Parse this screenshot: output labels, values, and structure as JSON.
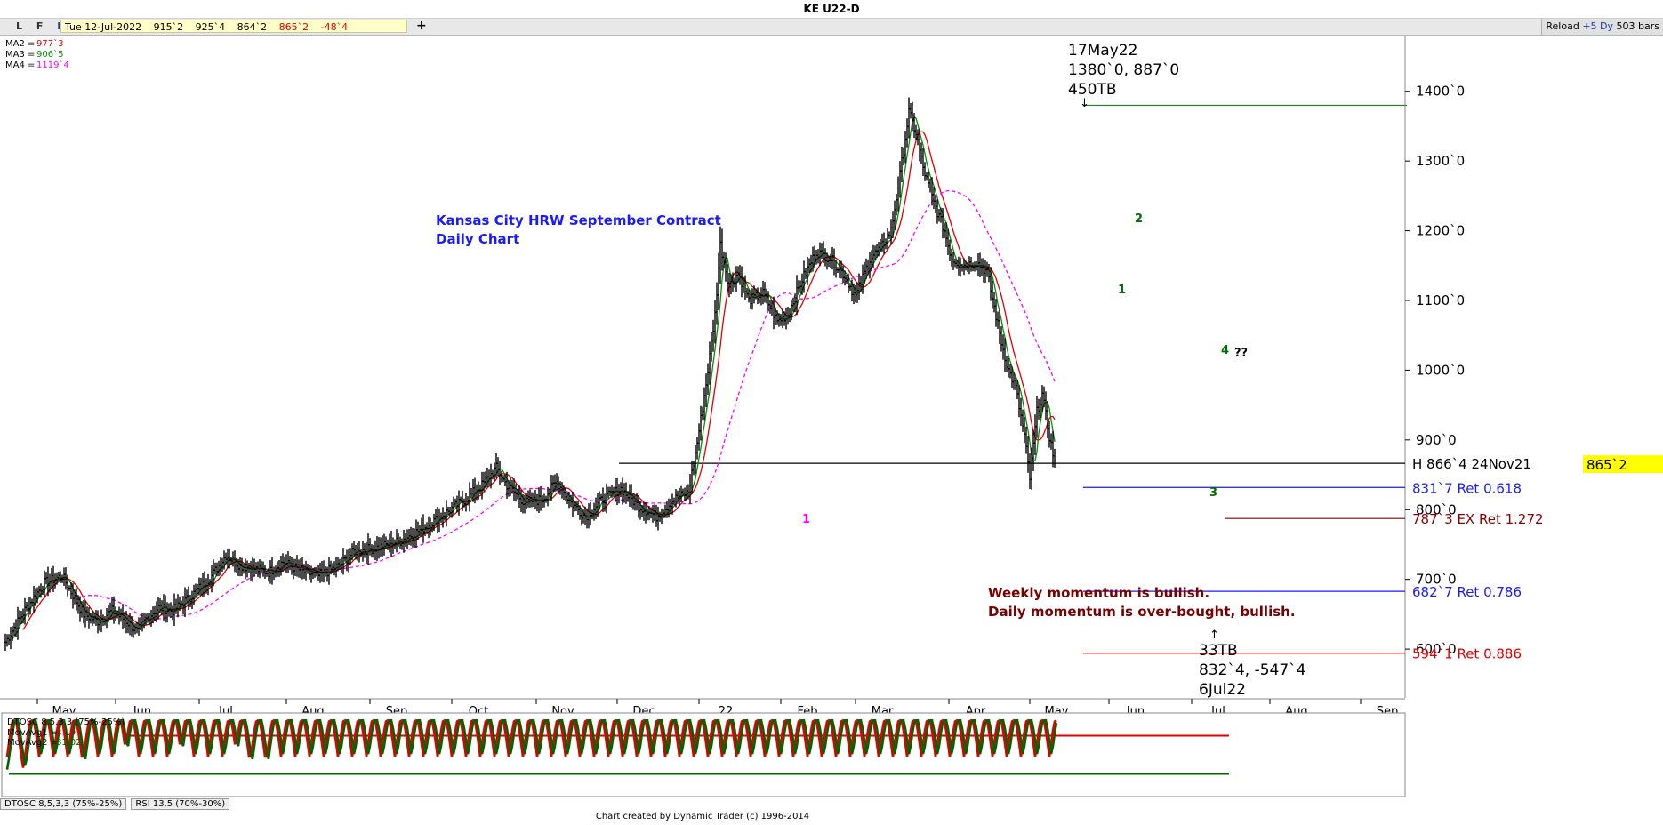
{
  "window": {
    "title": "KE U22-D",
    "lfr": [
      "L",
      "F",
      "R"
    ],
    "ohlc": {
      "date": "Tue 12-Jul-2022",
      "open": "915`2",
      "high": "925`4",
      "low": "864`2",
      "close": "865`2",
      "change": "-48`4"
    },
    "toolbar_right": {
      "reload": "Reload",
      "days": "+5 Dy",
      "bars": "503 bars"
    },
    "add_symbol": "+"
  },
  "legend": [
    {
      "label": "MA2 =",
      "value": "977`3",
      "color": "#e00000"
    },
    {
      "label": "MA3 =",
      "value": "906`5",
      "color": "#009000"
    },
    {
      "label": "MA4 =",
      "value": "1119`4",
      "color": "#ff00ff"
    }
  ],
  "chart_data": [
    {
      "type": "bar",
      "subtype": "ohlc",
      "title": "Kansas City HRW September Contract",
      "subtitle": "Daily Chart",
      "x_ticks": [
        "May",
        "Jun",
        "Jul",
        "Aug",
        "Sep",
        "Oct",
        "Nov",
        "Dec",
        "22",
        "Feb",
        "Mar",
        "Apr",
        "May",
        "Jun",
        "Jul",
        "Aug",
        "Sep"
      ],
      "y_ticks": [
        "600`0",
        "700`0",
        "800`0",
        "900`0",
        "1000`0",
        "1100`0",
        "1200`0",
        "1300`0",
        "1400`0"
      ],
      "y_tick_values": [
        600,
        700,
        800,
        900,
        1000,
        1100,
        1200,
        1300,
        1400
      ],
      "ylim": [
        530,
        1480
      ],
      "current_price": "865`2",
      "price_anchors": [
        [
          0,
          610
        ],
        [
          12,
          660
        ],
        [
          22,
          695
        ],
        [
          32,
          705
        ],
        [
          44,
          650
        ],
        [
          52,
          640
        ],
        [
          60,
          655
        ],
        [
          68,
          640
        ],
        [
          74,
          625
        ],
        [
          80,
          645
        ],
        [
          86,
          660
        ],
        [
          94,
          655
        ],
        [
          104,
          675
        ],
        [
          116,
          705
        ],
        [
          124,
          735
        ],
        [
          132,
          720
        ],
        [
          148,
          710
        ],
        [
          156,
          725
        ],
        [
          168,
          710
        ],
        [
          176,
          705
        ],
        [
          188,
          720
        ],
        [
          196,
          740
        ],
        [
          208,
          745
        ],
        [
          222,
          755
        ],
        [
          236,
          775
        ],
        [
          256,
          810
        ],
        [
          268,
          835
        ],
        [
          276,
          860
        ],
        [
          282,
          835
        ],
        [
          292,
          810
        ],
        [
          302,
          815
        ],
        [
          310,
          840
        ],
        [
          318,
          810
        ],
        [
          326,
          790
        ],
        [
          336,
          815
        ],
        [
          346,
          830
        ],
        [
          356,
          805
        ],
        [
          366,
          790
        ],
        [
          376,
          815
        ],
        [
          384,
          825
        ],
        [
          388,
          880
        ],
        [
          394,
          980
        ],
        [
          399,
          1080
        ],
        [
          402,
          1180
        ],
        [
          407,
          1120
        ],
        [
          412,
          1140
        ],
        [
          418,
          1100
        ],
        [
          426,
          1110
        ],
        [
          434,
          1070
        ],
        [
          440,
          1080
        ],
        [
          448,
          1130
        ],
        [
          456,
          1170
        ],
        [
          464,
          1160
        ],
        [
          472,
          1135
        ],
        [
          478,
          1105
        ],
        [
          486,
          1160
        ],
        [
          492,
          1175
        ],
        [
          498,
          1200
        ],
        [
          503,
          1280
        ],
        [
          508,
          1370
        ],
        [
          512,
          1340
        ],
        [
          516,
          1290
        ],
        [
          522,
          1240
        ],
        [
          528,
          1200
        ],
        [
          532,
          1160
        ],
        [
          538,
          1150
        ],
        [
          546,
          1155
        ],
        [
          552,
          1140
        ],
        [
          556,
          1090
        ],
        [
          560,
          1040
        ],
        [
          564,
          1000
        ],
        [
          568,
          975
        ],
        [
          573,
          905
        ],
        [
          576,
          845
        ],
        [
          580,
          940
        ],
        [
          583,
          965
        ],
        [
          587,
          905
        ],
        [
          590,
          868
        ]
      ],
      "moving_averages": [
        {
          "name": "MA2",
          "color": "#e00000",
          "lag": 7
        },
        {
          "name": "MA3",
          "color": "#009000",
          "lag": 3
        },
        {
          "name": "MA4",
          "color": "#ff00ff",
          "lag": 26
        }
      ],
      "annotations": [
        {
          "id": "high-label",
          "lines": [
            "17May22",
            "1380`0, 887`0",
            "450TB"
          ],
          "color": "#000000"
        },
        {
          "id": "low-label",
          "lines": [
            "33TB",
            "832`4, -547`4",
            "6Jul22"
          ],
          "color": "#000000"
        },
        {
          "id": "momentum-note",
          "lines": [
            "Weekly momentum is bullish.",
            "Daily momentum is over-bought, bullish."
          ],
          "color": "#7a0000"
        },
        {
          "id": "wave-1",
          "text": "1",
          "color": "#007000"
        },
        {
          "id": "wave-2",
          "text": "2",
          "color": "#007000"
        },
        {
          "id": "wave-3",
          "text": "3",
          "color": "#007000"
        },
        {
          "id": "wave-4",
          "text": "4",
          "color": "#007000"
        },
        {
          "id": "wave-question",
          "text": "??",
          "color": "#000000"
        },
        {
          "id": "feb-marker",
          "text": "1",
          "color": "#ff00ff"
        }
      ],
      "levels": [
        {
          "price": 1380,
          "label": "",
          "color": "#1a8a1a"
        },
        {
          "price": 866.5,
          "label": "H 866`4 24Nov21",
          "color": "#000000"
        },
        {
          "price": 831.875,
          "label": "831`7 Ret 0.618",
          "color": "#1a1aff"
        },
        {
          "price": 787.375,
          "label": "787`3 EX Ret 1.272",
          "color": "#8b0000"
        },
        {
          "price": 682.875,
          "label": "682`7 Ret 0.786",
          "color": "#1a1aff"
        },
        {
          "price": 594.125,
          "label": "594`1 Ret 0.886",
          "color": "#e00000"
        }
      ]
    },
    {
      "type": "line",
      "title": "DTOSC 8,5,3,3 (75%-25%)",
      "ylim": [
        0,
        100
      ],
      "bands": [
        75,
        25
      ],
      "series": [
        {
          "name": "MovAvg1",
          "value_label": "81.97",
          "color": "#e00000"
        },
        {
          "name": "MovAvg2",
          "value_label": "81.02",
          "color": "#006400"
        }
      ],
      "peaks": [
        4,
        14,
        22,
        30,
        38,
        47,
        55,
        63,
        70,
        78,
        86,
        94,
        101,
        109,
        117,
        125,
        132,
        141,
        150,
        158,
        166,
        174,
        182,
        190,
        198,
        206,
        214,
        222,
        230,
        238,
        246,
        254,
        262,
        270,
        278,
        286,
        294,
        302,
        310,
        318,
        326,
        334,
        342,
        350,
        358,
        366,
        374,
        382,
        390,
        398,
        406,
        414,
        422,
        430,
        438,
        446,
        454,
        462,
        470,
        478,
        486,
        494,
        502,
        510,
        518,
        526,
        534,
        542,
        550,
        558,
        566,
        574,
        582,
        590
      ]
    }
  ],
  "tabs": [
    "DTOSC 8,5,3,3 (75%-25%)",
    "RSI 13,5 (70%-30%)"
  ],
  "credit": "Chart created by Dynamic Trader  (c) 1996-2014"
}
